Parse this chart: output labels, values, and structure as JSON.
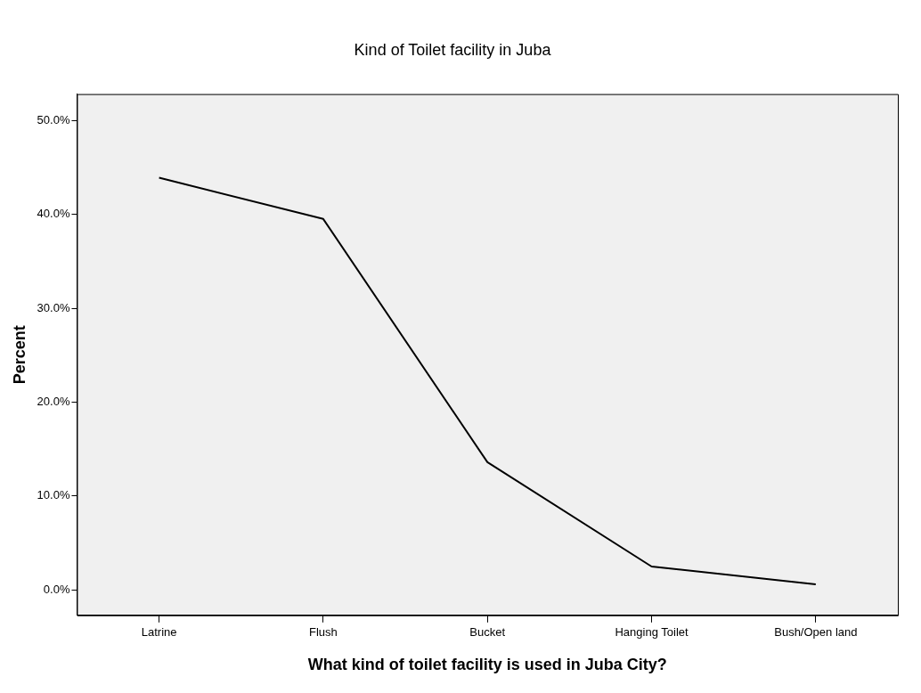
{
  "chart_data": {
    "type": "line",
    "title": "Kind of Toilet facility in Juba",
    "xlabel": "What kind of toilet facility is used in Juba City?",
    "ylabel": "Percent",
    "categories": [
      "Latrine",
      "Flush",
      "Bucket",
      "Hanging Toilet",
      "Bush/Open land"
    ],
    "series": [
      {
        "color": "#000000",
        "values": [
          43.9,
          39.5,
          13.6,
          2.5,
          0.6
        ]
      }
    ],
    "ylim": [
      -2.7,
      52.8
    ],
    "yticks": [
      {
        "value": 0,
        "label": "0.0%"
      },
      {
        "value": 10,
        "label": "10.0%"
      },
      {
        "value": 20,
        "label": "20.0%"
      },
      {
        "value": 30,
        "label": "30.0%"
      },
      {
        "value": 40,
        "label": "40.0%"
      },
      {
        "value": 50,
        "label": "50.0%"
      }
    ],
    "grid": false,
    "legend": false,
    "marker": "none",
    "line_style": "solid"
  }
}
